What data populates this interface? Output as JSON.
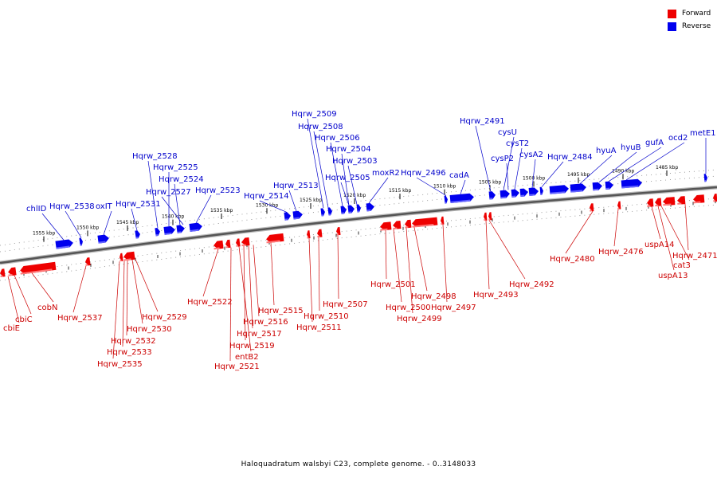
{
  "legend": {
    "forward_label": "Forward",
    "reverse_label": "Reverse",
    "forward_color": "#ee0000",
    "reverse_color": "#0000ee"
  },
  "caption": "Haloquadratum walsbyi C23, complete genome. - 0..3148033",
  "scale_ticks": [
    "1555 kbp",
    "1550 kbp",
    "1545 kbp",
    "1540 kbp",
    "1535 kbp",
    "1530 kbp",
    "1525 kbp",
    "1520 kbp",
    "1515 kbp",
    "1510 kbp",
    "1505 kbp",
    "1500 kbp",
    "1495 kbp",
    "1490 kbp",
    "1485 kbp"
  ],
  "genes": {
    "reverse": [
      "chlID",
      "Hqrw_2538",
      "oxIT",
      "Hqrw_2531",
      "Hqrw_2528",
      "Hqrw_2525",
      "Hqrw_2524",
      "Hqrw_2527",
      "Hqrw_2523",
      "Hqrw_2514",
      "Hqrw_2513",
      "Hqrw_2509",
      "Hqrw_2508",
      "Hqrw_2506",
      "Hqrw_2504",
      "Hqrw_2503",
      "Hqrw_2505",
      "moxR2",
      "Hqrw_2496",
      "cadA",
      "Hqrw_2491",
      "cysU",
      "cysT2",
      "cysP2",
      "cysA2",
      "Hqrw_2484",
      "hyuA",
      "hyuB",
      "gufA",
      "ocd2",
      "metE1"
    ],
    "forward": [
      "cbiE",
      "cbiC",
      "cobN",
      "Hqrw_2537",
      "Hqrw_2535",
      "Hqrw_2533",
      "Hqrw_2532",
      "Hqrw_2530",
      "Hqrw_2529",
      "Hqrw_2522",
      "Hqrw_2521",
      "entB2",
      "Hqrw_2519",
      "Hqrw_2517",
      "Hqrw_2516",
      "Hqrw_2515",
      "Hqrw_2511",
      "Hqrw_2510",
      "Hqrw_2507",
      "Hqrw_2501",
      "Hqrw_2500",
      "Hqrw_2499",
      "Hqrw_2498",
      "Hqrw_2497",
      "Hqrw_2493",
      "Hqrw_2492",
      "Hqrw_2480",
      "Hqrw_2476",
      "uspA14",
      "cat3",
      "uspA13",
      "Hqrw_2471"
    ]
  }
}
